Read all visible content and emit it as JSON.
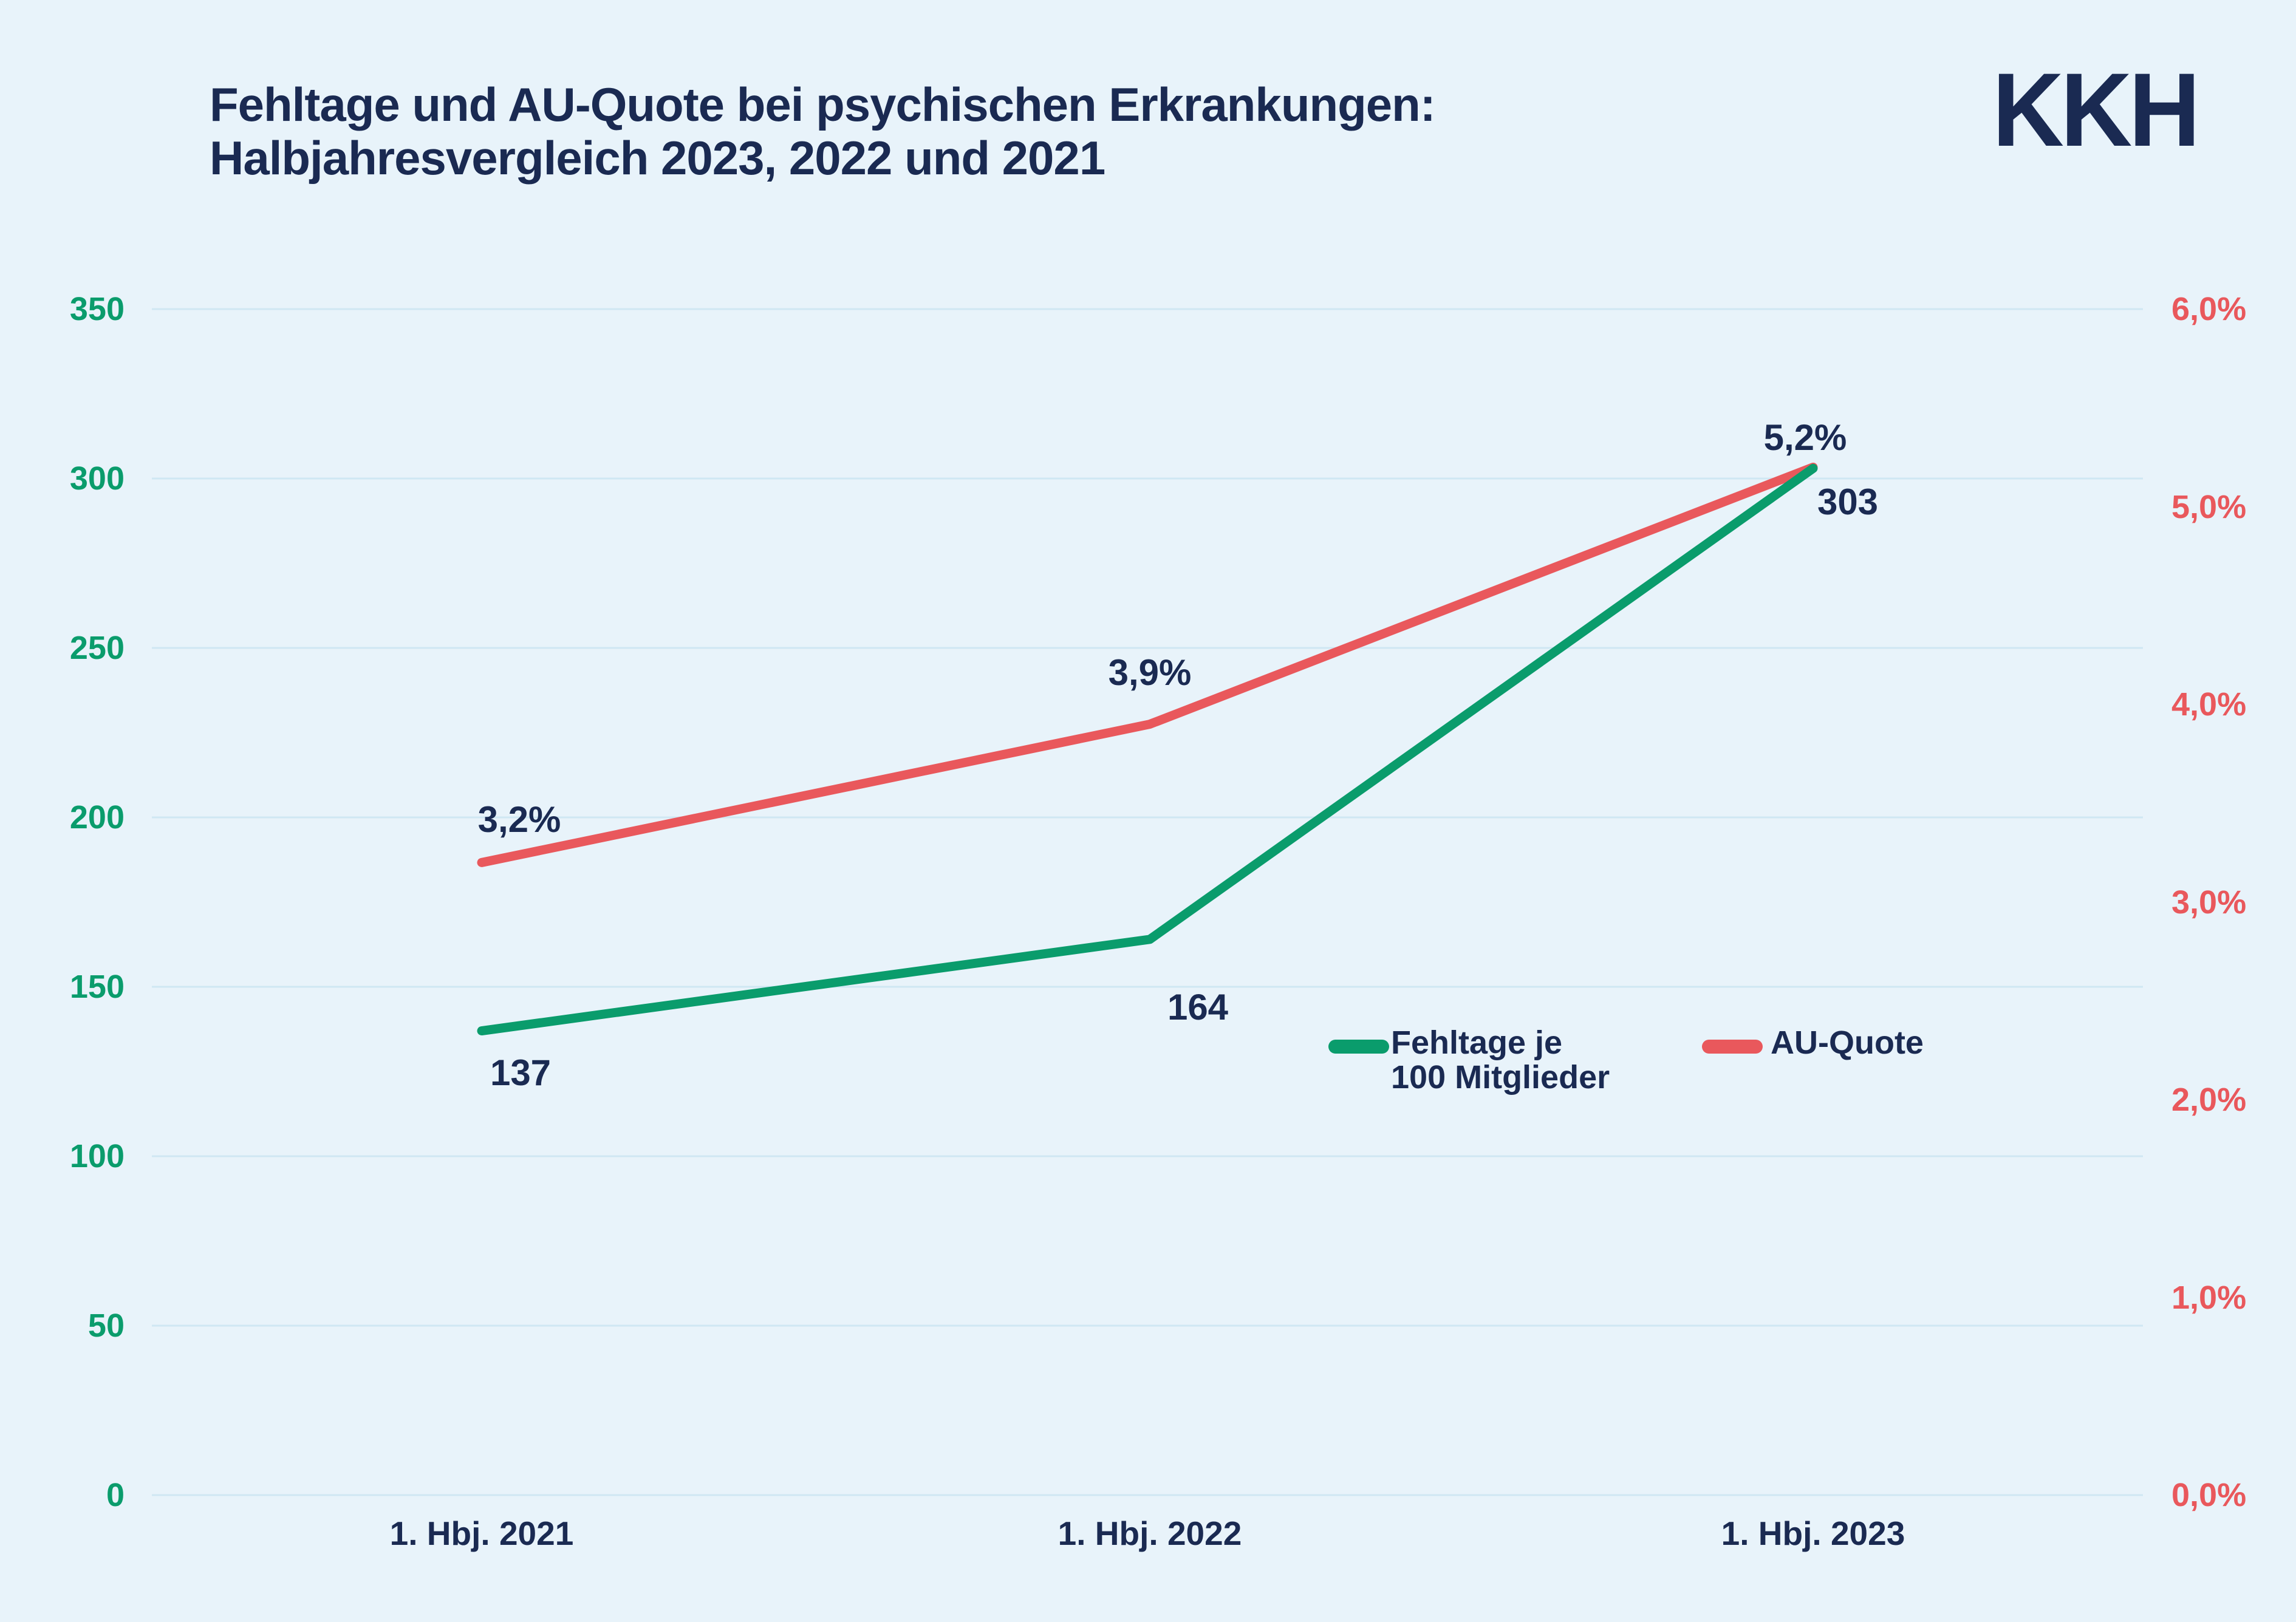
{
  "title": {
    "line1": "Fehltage und AU-Quote bei psychischen Erkrankungen:",
    "line2": "Halbjahresvergleich 2023, 2022 und 2021"
  },
  "logo_text": "KKH",
  "colors": {
    "background": "#e8f3fa",
    "navy": "#1a2a52",
    "green": "#0a9c6c",
    "red": "#e9585c",
    "gridline": "#cfe7f3"
  },
  "chart_data": {
    "type": "line",
    "title": "Fehltage und AU-Quote bei psychischen Erkrankungen: Halbjahresvergleich 2023, 2022 und 2021",
    "categories": [
      "1. Hbj. 2021",
      "1. Hbj. 2022",
      "1. Hbj. 2023"
    ],
    "series": [
      {
        "name": "Fehltage je 100 Mitglieder",
        "axis": "left",
        "color": "#0a9c6c",
        "values": [
          137,
          164,
          303
        ],
        "labels": [
          "137",
          "164",
          "303"
        ]
      },
      {
        "name": "AU-Quote",
        "axis": "right",
        "color": "#e9585c",
        "values": [
          3.2,
          3.9,
          5.2
        ],
        "labels": [
          "3,2%",
          "3,9%",
          "5,2%"
        ]
      }
    ],
    "left_axis": {
      "min": 0,
      "max": 350,
      "tick_values": [
        350,
        300,
        250,
        200,
        150,
        100,
        50,
        0
      ],
      "tick_labels": [
        "350",
        "300",
        "250",
        "200",
        "150",
        "100",
        "50",
        "0"
      ],
      "color": "#0a9c6c"
    },
    "right_axis": {
      "min": 0,
      "max": 6,
      "tick_values": [
        6,
        5,
        4,
        3,
        2,
        1,
        0
      ],
      "tick_labels": [
        "6,0%",
        "5,0%",
        "4,0%",
        "3,0%",
        "2,0%",
        "1,0%",
        "0,0%"
      ],
      "color": "#e9585c"
    },
    "grid": true,
    "legend_position": "center-right"
  },
  "legend": {
    "items": [
      {
        "line1": "Fehltage je",
        "line2": "100 Mitglieder"
      },
      {
        "line1": "AU-Quote",
        "line2": ""
      }
    ]
  }
}
